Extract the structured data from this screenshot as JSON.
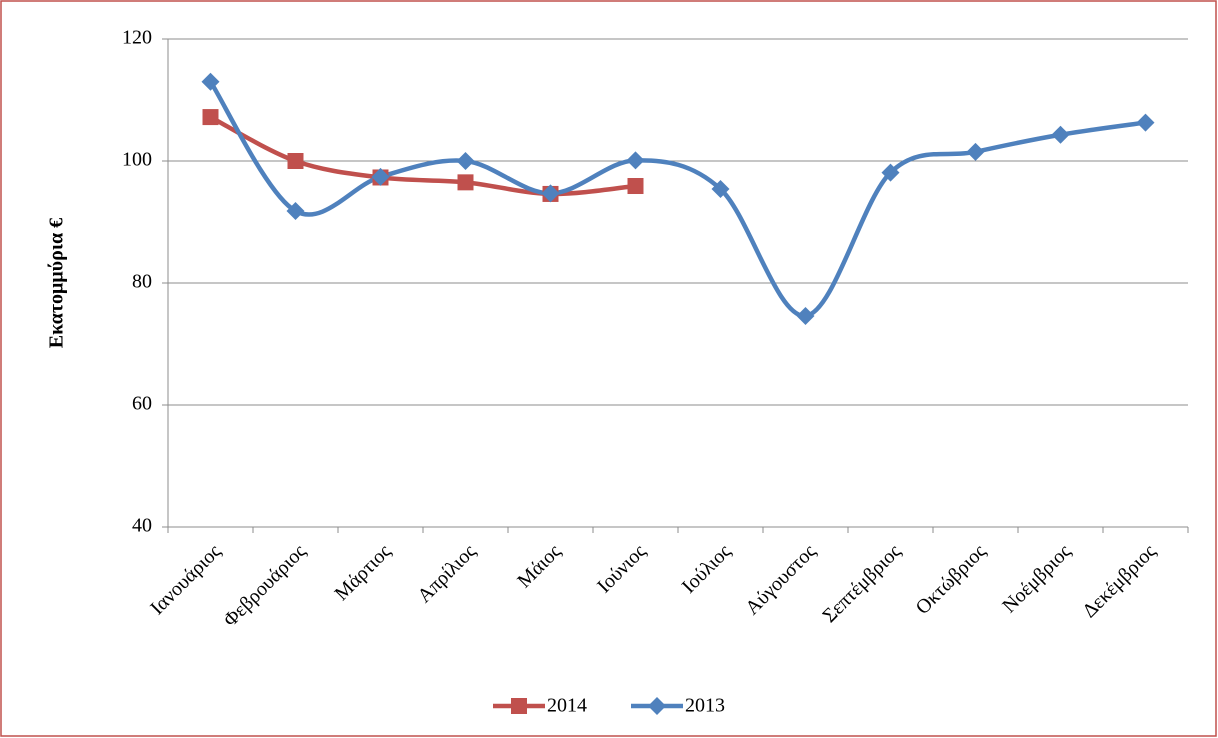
{
  "chart_data": {
    "type": "line",
    "y_label": "Εκατομμύρια €",
    "categories": [
      "Ιανουάριος",
      "Φεβρουάριος",
      "Μάρτιος",
      "Απρίλιος",
      "Μάιος",
      "Ιούνιος",
      "Ιούλιος",
      "Αύγουστος",
      "Σεπτέμβριος",
      "Οκτώβριος",
      "Νοέμβριος",
      "Δεκέμβριος"
    ],
    "series": [
      {
        "name": "2014",
        "color": "#c0504d",
        "marker": "square",
        "values": [
          107.2,
          100,
          97.3,
          96.5,
          94.6,
          95.9,
          null,
          null,
          null,
          null,
          null,
          null
        ]
      },
      {
        "name": "2013",
        "color": "#4f81bd",
        "marker": "diamond",
        "values": [
          113,
          91.8,
          97.4,
          100,
          94.7,
          100.1,
          95.4,
          74.6,
          98.1,
          101.5,
          104.3,
          106.3
        ]
      }
    ],
    "ylim": [
      40,
      120
    ],
    "yticks": [
      40,
      60,
      80,
      100,
      120
    ],
    "grid": true,
    "smooth": true,
    "legend": "bottom"
  }
}
